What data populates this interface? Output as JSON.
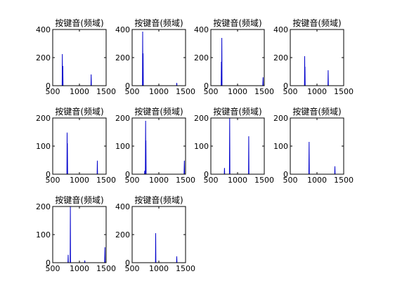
{
  "figure": {
    "background": "#ffffff",
    "line_color": "#0000cc",
    "axis_color": "#000000"
  },
  "chart_data": [
    {
      "type": "line",
      "title": "按键音(频域)",
      "xlim": [
        500,
        1500
      ],
      "ylim": [
        0,
        400
      ],
      "xticks": [
        500,
        1000,
        1500
      ],
      "yticks": [
        0,
        200,
        400
      ],
      "peaks": [
        [
          680,
          225
        ],
        [
          690,
          140
        ],
        [
          1220,
          80
        ]
      ]
    },
    {
      "type": "line",
      "title": "按键音(频域)",
      "xlim": [
        500,
        1500
      ],
      "ylim": [
        0,
        400
      ],
      "xticks": [
        500,
        1000,
        1500
      ],
      "yticks": [
        0,
        200,
        400
      ],
      "peaks": [
        [
          697,
          385
        ],
        [
          705,
          230
        ],
        [
          1335,
          20
        ]
      ]
    },
    {
      "type": "line",
      "title": "按键音(频域)",
      "xlim": [
        500,
        1500
      ],
      "ylim": [
        0,
        400
      ],
      "xticks": [
        500,
        1000,
        1500
      ],
      "yticks": [
        0,
        200,
        400
      ],
      "peaks": [
        [
          697,
          170
        ],
        [
          705,
          340
        ],
        [
          1477,
          60
        ]
      ]
    },
    {
      "type": "line",
      "title": "按键音(频域)",
      "xlim": [
        500,
        1500
      ],
      "ylim": [
        0,
        400
      ],
      "xticks": [
        500,
        1000,
        1500
      ],
      "yticks": [
        0,
        200,
        400
      ],
      "peaks": [
        [
          770,
          210
        ],
        [
          775,
          135
        ],
        [
          1209,
          110
        ]
      ]
    },
    {
      "type": "line",
      "title": "按键音(频域)",
      "xlim": [
        500,
        1500
      ],
      "ylim": [
        0,
        200
      ],
      "xticks": [
        500,
        1000,
        1500
      ],
      "yticks": [
        0,
        100,
        200
      ],
      "peaks": [
        [
          770,
          148
        ],
        [
          775,
          110
        ],
        [
          1336,
          48
        ]
      ]
    },
    {
      "type": "line",
      "title": "按键音(频域)",
      "xlim": [
        500,
        1500
      ],
      "ylim": [
        0,
        200
      ],
      "xticks": [
        500,
        1000,
        1500
      ],
      "yticks": [
        0,
        100,
        200
      ],
      "peaks": [
        [
          735,
          12
        ],
        [
          752,
          190
        ],
        [
          758,
          120
        ],
        [
          1477,
          48
        ]
      ]
    },
    {
      "type": "line",
      "title": "按键音(频域)",
      "xlim": [
        500,
        1500
      ],
      "ylim": [
        0,
        200
      ],
      "xticks": [
        500,
        1000,
        1500
      ],
      "yticks": [
        0,
        100,
        200
      ],
      "peaks": [
        [
          755,
          22
        ],
        [
          852,
          200
        ],
        [
          1209,
          135
        ]
      ]
    },
    {
      "type": "line",
      "title": "按键音(频域)",
      "xlim": [
        500,
        1500
      ],
      "ylim": [
        0,
        200
      ],
      "xticks": [
        500,
        1000,
        1500
      ],
      "yticks": [
        0,
        100,
        200
      ],
      "peaks": [
        [
          852,
          115
        ],
        [
          1336,
          28
        ]
      ]
    },
    {
      "type": "line",
      "title": "按键音(频域)",
      "xlim": [
        500,
        1500
      ],
      "ylim": [
        0,
        200
      ],
      "xticks": [
        500,
        1000,
        1500
      ],
      "yticks": [
        0,
        100,
        200
      ],
      "peaks": [
        [
          790,
          28
        ],
        [
          830,
          200
        ],
        [
          1100,
          8
        ],
        [
          1477,
          55
        ]
      ]
    },
    {
      "type": "line",
      "title": "按键音(频域)",
      "xlim": [
        500,
        1500
      ],
      "ylim": [
        0,
        400
      ],
      "xticks": [
        500,
        1000,
        1500
      ],
      "yticks": [
        0,
        200,
        400
      ],
      "peaks": [
        [
          941,
          210
        ],
        [
          1336,
          45
        ]
      ]
    }
  ]
}
